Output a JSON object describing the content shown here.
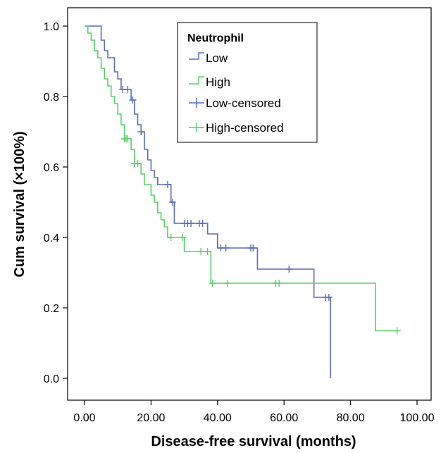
{
  "chart_data": {
    "type": "line",
    "subtype": "kaplan-meier step",
    "xlabel": "Disease-free survival (months)",
    "ylabel": "Cum survival (×100%)",
    "xlim": [
      0,
      100
    ],
    "ylim": [
      0,
      1.0
    ],
    "x_ticks": [
      "0.00",
      "20.00",
      "40.00",
      "60.00",
      "80.00",
      "100.00"
    ],
    "y_ticks": [
      "0.0",
      "0.2",
      "0.4",
      "0.6",
      "0.8",
      "1.0"
    ],
    "grid": false,
    "legend": {
      "title": "Neutrophil",
      "placement": "top-right",
      "entries": [
        "Low",
        "High",
        "Low-censored",
        "High-censored"
      ]
    },
    "colors": {
      "low": "#5b6db0",
      "high": "#5ccd6a"
    },
    "series": [
      {
        "name": "Low",
        "color": "#5b6db0",
        "steps": [
          [
            0,
            1.0
          ],
          [
            5,
            0.96
          ],
          [
            6,
            0.93
          ],
          [
            7,
            0.91
          ],
          [
            9,
            0.87
          ],
          [
            10,
            0.85
          ],
          [
            11,
            0.82
          ],
          [
            14,
            0.79
          ],
          [
            15,
            0.75
          ],
          [
            16,
            0.72
          ],
          [
            17,
            0.7
          ],
          [
            18,
            0.65
          ],
          [
            19,
            0.62
          ],
          [
            20,
            0.59
          ],
          [
            21,
            0.57
          ],
          [
            22,
            0.55
          ],
          [
            26,
            0.5
          ],
          [
            27,
            0.44
          ],
          [
            37,
            0.41
          ],
          [
            40,
            0.37
          ],
          [
            52,
            0.31
          ],
          [
            69,
            0.23
          ],
          [
            74,
            0.0
          ]
        ],
        "end_x": 74,
        "censored": [
          [
            11.5,
            0.82
          ],
          [
            13,
            0.82
          ],
          [
            14.5,
            0.79
          ],
          [
            17,
            0.7
          ],
          [
            25,
            0.55
          ],
          [
            26.5,
            0.5
          ],
          [
            30,
            0.44
          ],
          [
            31,
            0.44
          ],
          [
            32,
            0.44
          ],
          [
            34.5,
            0.44
          ],
          [
            35.5,
            0.44
          ],
          [
            41,
            0.37
          ],
          [
            42.5,
            0.37
          ],
          [
            50,
            0.37
          ],
          [
            50.7,
            0.37
          ],
          [
            61.5,
            0.31
          ],
          [
            72.5,
            0.23
          ],
          [
            73.5,
            0.23
          ]
        ]
      },
      {
        "name": "High",
        "color": "#5ccd6a",
        "steps": [
          [
            0,
            1.0
          ],
          [
            1,
            0.98
          ],
          [
            2,
            0.96
          ],
          [
            3,
            0.93
          ],
          [
            4,
            0.91
          ],
          [
            5,
            0.88
          ],
          [
            6,
            0.85
          ],
          [
            7,
            0.83
          ],
          [
            8,
            0.8
          ],
          [
            9,
            0.78
          ],
          [
            10,
            0.75
          ],
          [
            11,
            0.72
          ],
          [
            12,
            0.68
          ],
          [
            14,
            0.65
          ],
          [
            15,
            0.61
          ],
          [
            17,
            0.58
          ],
          [
            18,
            0.55
          ],
          [
            20,
            0.52
          ],
          [
            21,
            0.5
          ],
          [
            22,
            0.47
          ],
          [
            23,
            0.45
          ],
          [
            24,
            0.43
          ],
          [
            25,
            0.4
          ],
          [
            30,
            0.36
          ],
          [
            38,
            0.27
          ],
          [
            87.5,
            0.135
          ]
        ],
        "end_x": 94,
        "censored": [
          [
            12,
            0.68
          ],
          [
            12.5,
            0.68
          ],
          [
            13,
            0.68
          ],
          [
            15,
            0.61
          ],
          [
            16,
            0.61
          ],
          [
            26,
            0.4
          ],
          [
            29.5,
            0.4
          ],
          [
            35,
            0.36
          ],
          [
            37,
            0.36
          ],
          [
            38.5,
            0.27
          ],
          [
            43,
            0.27
          ],
          [
            57.5,
            0.27
          ],
          [
            58.5,
            0.27
          ],
          [
            94,
            0.135
          ]
        ]
      }
    ]
  }
}
